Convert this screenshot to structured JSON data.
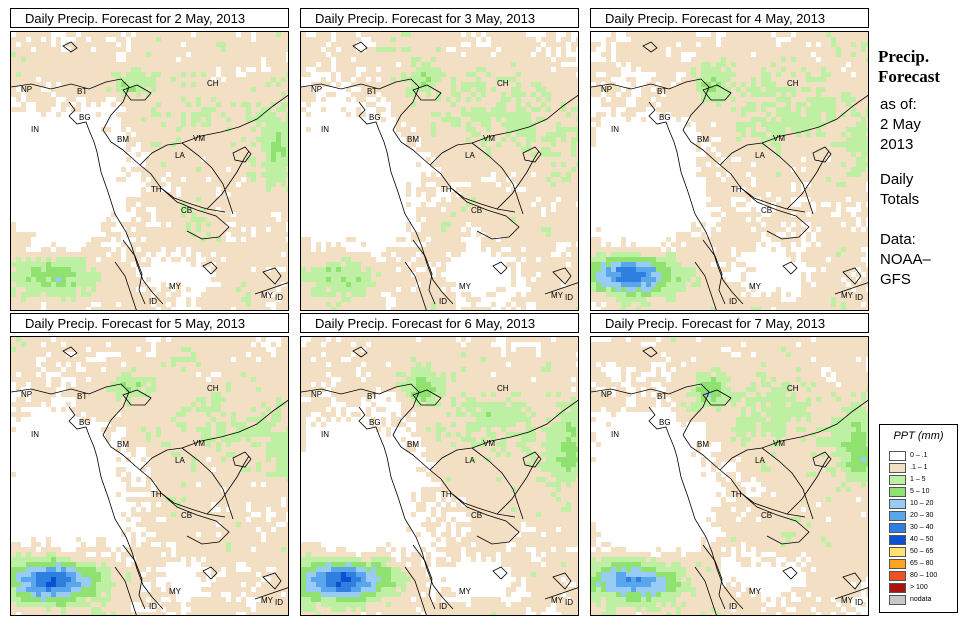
{
  "panels": [
    {
      "title": "Daily Precip. Forecast for  2 May, 2013",
      "seed": 11,
      "storm": 0.35,
      "swStorm": 0.4,
      "east": 0.5
    },
    {
      "title": "Daily Precip. Forecast for  3 May, 2013",
      "seed": 23,
      "storm": 0.45,
      "swStorm": 0.3,
      "east": 0.2
    },
    {
      "title": "Daily Precip. Forecast for  4 May, 2013",
      "seed": 37,
      "storm": 0.55,
      "swStorm": 0.9,
      "east": 0.3
    },
    {
      "title": "Daily Precip. Forecast for  5 May, 2013",
      "seed": 41,
      "storm": 0.4,
      "swStorm": 1.0,
      "east": 0.3
    },
    {
      "title": "Daily Precip. Forecast for  6 May, 2013",
      "seed": 53,
      "storm": 0.6,
      "swStorm": 1.0,
      "east": 0.6
    },
    {
      "title": "Daily Precip. Forecast for  7 May, 2013",
      "seed": 67,
      "storm": 0.65,
      "swStorm": 0.8,
      "east": 0.7
    }
  ],
  "map_labels": [
    "NP",
    "BT",
    "IN",
    "BG",
    "BM",
    "CH",
    "VM",
    "LA",
    "TH",
    "CB",
    "MY",
    "ID"
  ],
  "side": {
    "title_line1": "Precip.",
    "title_line2": "Forecast",
    "as_of": "as of:",
    "date_line1": "2 May",
    "date_line2": "2013",
    "totals_line1": "Daily",
    "totals_line2": "Totals",
    "data_line1": "Data:",
    "data_line2": "NOAA–",
    "data_line3": "GFS"
  },
  "legend": {
    "title": "PPT (mm)",
    "items": [
      {
        "label": "0 – .1",
        "color": "#ffffff"
      },
      {
        "label": ".1 – 1",
        "color": "#f3dfc3"
      },
      {
        "label": "1 – 5",
        "color": "#bdf0a2"
      },
      {
        "label": "5 – 10",
        "color": "#8fe26f"
      },
      {
        "label": "10 – 20",
        "color": "#99ccf5"
      },
      {
        "label": "20 – 30",
        "color": "#5aa6ec"
      },
      {
        "label": "30 – 40",
        "color": "#2f7fe0"
      },
      {
        "label": "40 – 50",
        "color": "#0c50d4"
      },
      {
        "label": "50 – 65",
        "color": "#ffe274"
      },
      {
        "label": "65 – 80",
        "color": "#ffa41f"
      },
      {
        "label": "80 – 100",
        "color": "#f0501f"
      },
      {
        "label": "> 100",
        "color": "#a8140e"
      },
      {
        "label": "nodata",
        "color": "#c8c8c8"
      }
    ]
  }
}
